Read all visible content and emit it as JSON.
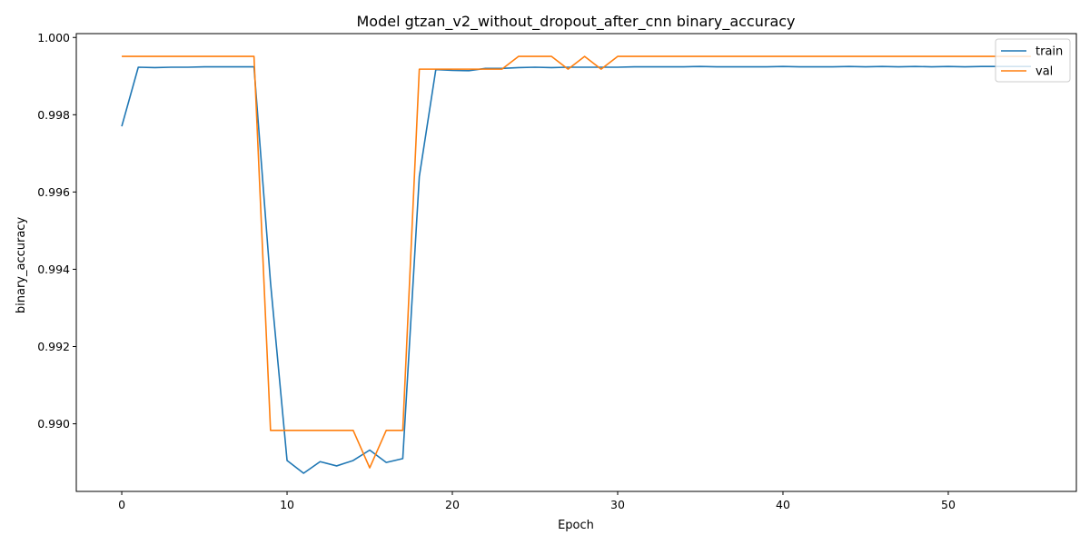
{
  "chart_data": {
    "type": "line",
    "title": "Model gtzan_v2_without_dropout_after_cnn binary_accuracy",
    "xlabel": "Epoch",
    "ylabel": "binary_accuracy",
    "xlim": [
      -2.75,
      57.75
    ],
    "ylim": [
      0.98825,
      1.0001
    ],
    "xticks": [
      0,
      10,
      20,
      30,
      40,
      50
    ],
    "xtick_labels": [
      "0",
      "10",
      "20",
      "30",
      "40",
      "50"
    ],
    "yticks": [
      0.99,
      0.992,
      0.994,
      0.996,
      0.998,
      1.0
    ],
    "ytick_labels": [
      "0.990",
      "0.992",
      "0.994",
      "0.996",
      "0.998",
      "1.000"
    ],
    "grid": false,
    "legend_position": "top-right",
    "x": [
      0,
      1,
      2,
      3,
      4,
      5,
      6,
      7,
      8,
      9,
      10,
      11,
      12,
      13,
      14,
      15,
      16,
      17,
      18,
      19,
      20,
      21,
      22,
      23,
      24,
      25,
      26,
      27,
      28,
      29,
      30,
      31,
      32,
      33,
      34,
      35,
      36,
      37,
      38,
      39,
      40,
      41,
      42,
      43,
      44,
      45,
      46,
      47,
      48,
      49,
      50,
      51,
      52,
      53,
      54,
      55
    ],
    "series": [
      {
        "name": "train",
        "color": "#1f77b4",
        "values": [
          0.9977,
          0.99923,
          0.99922,
          0.99923,
          0.99923,
          0.99924,
          0.99924,
          0.99924,
          0.99924,
          0.99365,
          0.98905,
          0.98872,
          0.98902,
          0.98891,
          0.98905,
          0.98932,
          0.989,
          0.9891,
          0.9964,
          0.99917,
          0.99915,
          0.99914,
          0.9992,
          0.9992,
          0.99922,
          0.99923,
          0.99922,
          0.99923,
          0.99923,
          0.99923,
          0.99923,
          0.99924,
          0.99924,
          0.99924,
          0.99924,
          0.99925,
          0.99924,
          0.99924,
          0.99924,
          0.99924,
          0.99925,
          0.99924,
          0.99924,
          0.99924,
          0.99925,
          0.99924,
          0.99925,
          0.99924,
          0.99925,
          0.99924,
          0.99925,
          0.99924,
          0.99925,
          0.99925,
          0.99925,
          0.99925
        ]
      },
      {
        "name": "val",
        "color": "#ff7f0e",
        "values": [
          0.99951,
          0.99951,
          0.99951,
          0.99951,
          0.99951,
          0.99951,
          0.99951,
          0.99951,
          0.99951,
          0.98983,
          0.98983,
          0.98983,
          0.98983,
          0.98983,
          0.98983,
          0.98886,
          0.98983,
          0.98983,
          0.99918,
          0.99918,
          0.99918,
          0.99918,
          0.99918,
          0.99918,
          0.99951,
          0.99951,
          0.99951,
          0.99918,
          0.99951,
          0.99918,
          0.99951,
          0.99951,
          0.99951,
          0.99951,
          0.99951,
          0.99951,
          0.99951,
          0.99951,
          0.99951,
          0.99951,
          0.99951,
          0.99951,
          0.99951,
          0.99951,
          0.99951,
          0.99951,
          0.99951,
          0.99951,
          0.99951,
          0.99951,
          0.99951,
          0.99951,
          0.99951,
          0.99951,
          0.99951,
          0.99951
        ]
      }
    ]
  }
}
